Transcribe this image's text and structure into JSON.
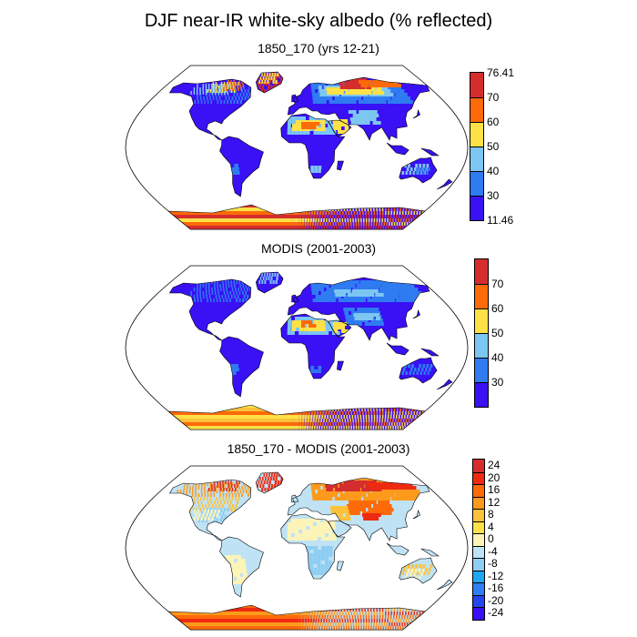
{
  "title": "DJF near-IR white-sky albedo (% reflected)",
  "panels": [
    {
      "id": "model",
      "subtitle": "1850_170 (yrs 12-21)",
      "palette": "albedo",
      "colorbar": {
        "colors": [
          "#3a10f5",
          "#2e7bf2",
          "#7cc6f2",
          "#fde147",
          "#fd6a08",
          "#d52d2e"
        ],
        "labels": [
          "11.46",
          "30",
          "40",
          "50",
          "60",
          "70",
          "76.41"
        ]
      }
    },
    {
      "id": "obs",
      "subtitle": "MODIS (2001-2003)",
      "palette": "albedo",
      "colorbar": {
        "colors": [
          "#3a10f5",
          "#2e7bf2",
          "#7cc6f2",
          "#fde147",
          "#fd6a08",
          "#d52d2e"
        ],
        "labels": [
          "30",
          "40",
          "50",
          "60",
          "70"
        ]
      }
    },
    {
      "id": "diff",
      "subtitle": "1850_170 - MODIS (2001-2003)",
      "palette": "diff",
      "colorbar": {
        "colors": [
          "#3a10f5",
          "#2446f0",
          "#2f7ef2",
          "#1fa8f2",
          "#8fcdf2",
          "#bfe3f5",
          "#fdf4b8",
          "#fde147",
          "#fdc23a",
          "#fd9a1c",
          "#fd6a08",
          "#ee2a10",
          "#d52d2e"
        ],
        "labels": [
          "-24",
          "-20",
          "-16",
          "-12",
          "-8",
          "-4",
          "0",
          "4",
          "8",
          "12",
          "16",
          "20",
          "24"
        ]
      }
    }
  ]
}
